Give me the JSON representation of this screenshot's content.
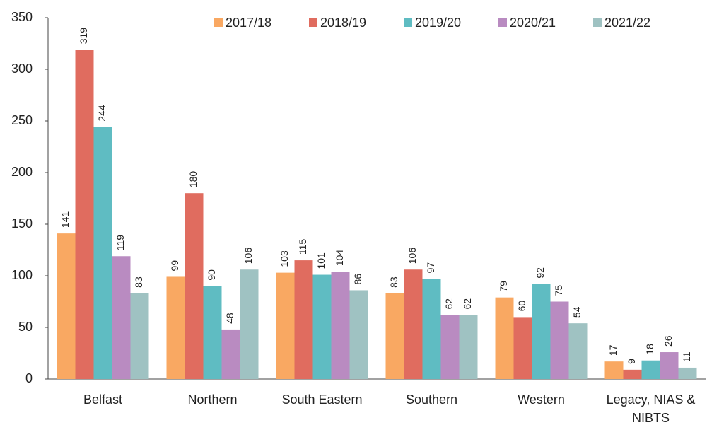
{
  "chart_data": {
    "type": "bar",
    "categories": [
      "Belfast",
      "Northern",
      "South Eastern",
      "Southern",
      "Western",
      "Legacy, NIAS & NIBTS"
    ],
    "series": [
      {
        "name": "2017/18",
        "color": "#f9a862",
        "values": [
          141,
          99,
          103,
          83,
          79,
          17
        ]
      },
      {
        "name": "2018/19",
        "color": "#e06c5f",
        "values": [
          319,
          180,
          115,
          106,
          60,
          9
        ]
      },
      {
        "name": "2019/20",
        "color": "#5fbcc2",
        "values": [
          244,
          90,
          101,
          97,
          92,
          18
        ]
      },
      {
        "name": "2020/21",
        "color": "#b98bc1",
        "values": [
          119,
          48,
          104,
          62,
          75,
          26
        ]
      },
      {
        "name": "2021/22",
        "color": "#9fc2c2",
        "values": [
          83,
          106,
          86,
          62,
          54,
          11
        ]
      }
    ],
    "ylim": [
      0,
      350
    ],
    "yticks": [
      0,
      50,
      100,
      150,
      200,
      250,
      300,
      350
    ],
    "grid": false,
    "legend": "top"
  }
}
